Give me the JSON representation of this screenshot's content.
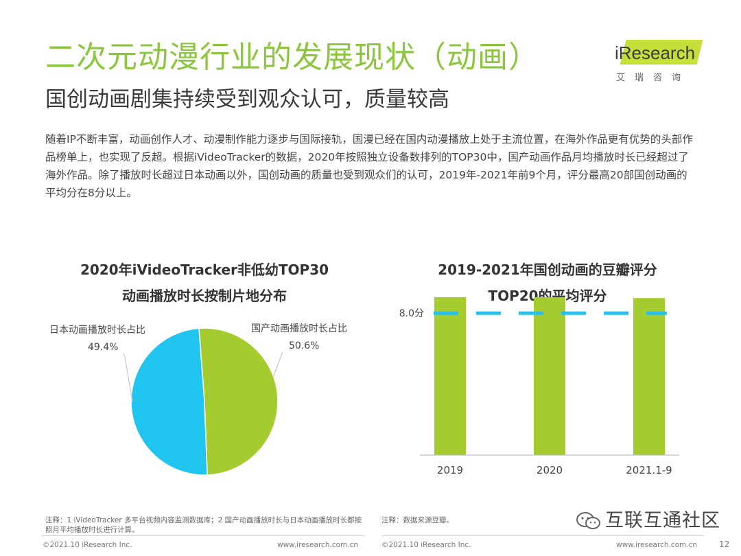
{
  "header": {
    "title": "二次元动漫行业的发展现状（动画）",
    "subtitle": "国创动画剧集持续受到观众认可，质量较高",
    "logo_text": "iResearch",
    "logo_sub": "艾瑞咨询"
  },
  "body": {
    "paragraph": "随着IP不断丰富，动画创作人才、动漫制作能力逐步与国际接轨，国漫已经在国内动漫播放上处于主流位置，在海外作品更有优势的头部作品榜单上，也实现了反超。根据iVideoTracker的数据，2020年按照独立设备数排列的TOP30中，国产动画作品月均播放时长已经超过了海外作品。除了播放时长超过日本动画以外，国创动画的质量也受到观众们的认可，2019年-2021年前9个月，评分最高20部国创动画的平均分在8分以上。"
  },
  "chart_data": [
    {
      "type": "pie",
      "title_line1": "2020年iVideoTracker非低幼TOP30",
      "title_line2": "动画播放时长按制片地分布",
      "slices": [
        {
          "label": "国产动画播放时长占比",
          "value": 50.6,
          "display": "50.6%",
          "color": "#a4cc2e"
        },
        {
          "label": "日本动画播放时长占比",
          "value": 49.4,
          "display": "49.4%",
          "color": "#1fc4ef"
        }
      ]
    },
    {
      "type": "bar",
      "title_line1": "2019-2021年国创动画的豆瓣评分",
      "title_line2": "TOP20的平均评分",
      "categories": [
        "2019",
        "2020",
        "2021.1-9"
      ],
      "values": [
        8.9,
        8.9,
        8.85
      ],
      "ylim": [
        0,
        9.4
      ],
      "reference_line": {
        "value": 8.0,
        "label": "8.0分",
        "color": "#2bbfe6"
      },
      "bar_color": "#a4cc2e"
    }
  ],
  "notes": {
    "left": "注释：1 iVideoTracker 多平台视频内容监测数据库；2 国产动画播放时长与日本动画播放时长都按照月平均播放时长进行计算。",
    "right": "注释：数据来源豆瓣。"
  },
  "footer": {
    "left_copyright": "©2021.10 iResearch Inc.",
    "left_url": "www.iresearch.com.cn",
    "right_copyright": "©2021.10 iResearch Inc.",
    "right_url": "www.iresearch.com.cn",
    "page_number": "12"
  },
  "watermark": {
    "text": "互联互通社区"
  }
}
